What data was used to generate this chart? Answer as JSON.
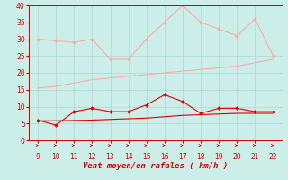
{
  "x": [
    9,
    10,
    11,
    12,
    13,
    14,
    15,
    16,
    17,
    18,
    19,
    20,
    21,
    22
  ],
  "rafales": [
    30,
    29.5,
    29,
    30,
    24,
    24,
    30,
    35,
    40,
    35,
    33,
    31,
    36,
    25
  ],
  "moyenne_haute": [
    15.5,
    16,
    17,
    18,
    18.5,
    19,
    19.5,
    20,
    20.5,
    21,
    21.5,
    22,
    23,
    24
  ],
  "vent_moyen": [
    6,
    4.5,
    8.5,
    9.5,
    8.5,
    8.5,
    10.5,
    13.5,
    11.5,
    8,
    9.5,
    9.5,
    8.5,
    8.5
  ],
  "vent_bas": [
    5.8,
    5.8,
    5.9,
    6.0,
    6.2,
    6.4,
    6.6,
    7.0,
    7.4,
    7.6,
    7.8,
    8.0,
    8.0,
    8.0
  ],
  "bg_color": "#cceee8",
  "grid_color": "#aad8d4",
  "color_rafales": "#ffaaaa",
  "color_moyenne_haute": "#ffaaaa",
  "color_vent_moyen": "#dd0000",
  "color_vent_bas": "#dd0000",
  "xlabel": "Vent moyen/en rafales ( km/h )",
  "ylim": [
    0,
    40
  ],
  "xlim": [
    9,
    22
  ],
  "yticks": [
    0,
    5,
    10,
    15,
    20,
    25,
    30,
    35,
    40
  ],
  "xticks": [
    9,
    10,
    11,
    12,
    13,
    14,
    15,
    16,
    17,
    18,
    19,
    20,
    21,
    22
  ]
}
